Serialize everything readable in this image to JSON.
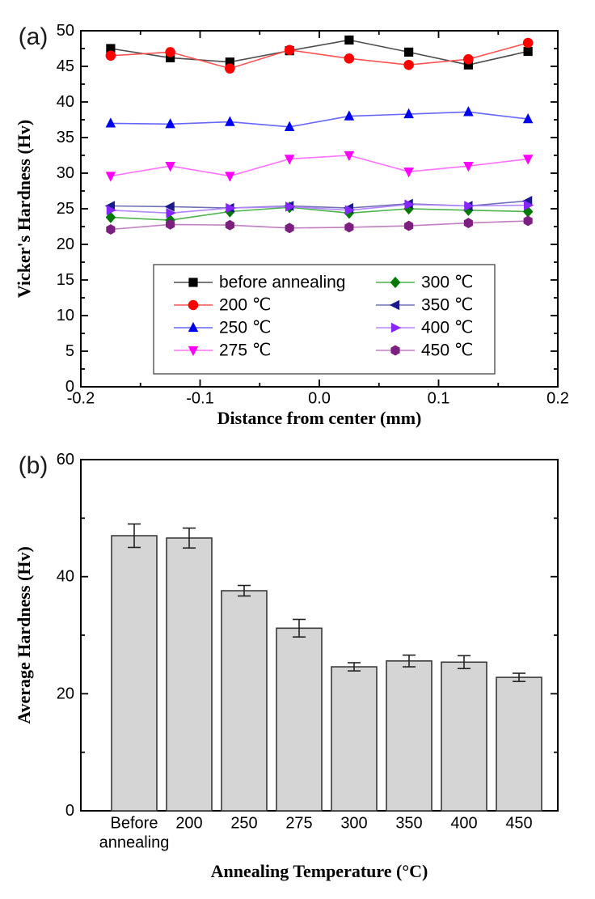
{
  "panels": {
    "a": {
      "label": "(a)"
    },
    "b": {
      "label": "(b)"
    }
  },
  "chart_data": [
    {
      "type": "line",
      "panel": "a",
      "title": "",
      "xlabel": "Distance from center (mm)",
      "ylabel": "Vicker's Hardness (Hv)",
      "xlim": [
        -0.2,
        0.2
      ],
      "ylim": [
        0,
        50
      ],
      "grid": false,
      "x_major_ticks": [
        -0.2,
        -0.1,
        0.0,
        0.1,
        0.2
      ],
      "x_tick_labels": [
        "-0.2",
        "-0.1",
        "0.0",
        "0.1",
        "0.2"
      ],
      "x_minor_ticks": [
        -0.15,
        -0.05,
        0.05,
        0.15
      ],
      "y_major_ticks": [
        0,
        5,
        10,
        15,
        20,
        25,
        30,
        35,
        40,
        45,
        50
      ],
      "y_minor_ticks": [
        2.5,
        7.5,
        12.5,
        17.5,
        22.5,
        27.5,
        32.5,
        37.5,
        42.5,
        47.5
      ],
      "legend_position": "inside-bottom-center",
      "legend_columns": 2,
      "x": [
        -0.175,
        -0.125,
        -0.075,
        -0.025,
        0.025,
        0.075,
        0.125,
        0.175
      ],
      "series": [
        {
          "name": "before annealing",
          "marker": "square",
          "color": "#000000",
          "line_color": "#4d4d4d",
          "values": [
            47.5,
            46.2,
            45.6,
            47.2,
            48.7,
            47.0,
            45.2,
            47.1
          ]
        },
        {
          "name": "200 ℃",
          "marker": "circle",
          "color": "#ff0000",
          "line_color": "#ff5252",
          "values": [
            46.5,
            47.0,
            44.7,
            47.3,
            46.1,
            45.2,
            46.0,
            48.3
          ]
        },
        {
          "name": "250 ℃",
          "marker": "triangle-up",
          "color": "#0000f0",
          "line_color": "#6666ff",
          "values": [
            37.0,
            36.9,
            37.2,
            36.5,
            38.0,
            38.3,
            38.6,
            37.6
          ]
        },
        {
          "name": "275 ℃",
          "marker": "triangle-down",
          "color": "#ff00ff",
          "line_color": "#ff70ff",
          "values": [
            29.6,
            31.0,
            29.6,
            32.0,
            32.5,
            30.2,
            31.0,
            32.0
          ]
        },
        {
          "name": "300 ℃",
          "marker": "diamond",
          "color": "#007a00",
          "line_color": "#4db34d",
          "values": [
            23.8,
            23.4,
            24.6,
            25.2,
            24.4,
            25.0,
            24.8,
            24.6
          ]
        },
        {
          "name": "350 ℃",
          "marker": "triangle-left",
          "color": "#1a1a8c",
          "line_color": "#7070b8",
          "values": [
            25.4,
            25.3,
            25.1,
            25.4,
            25.1,
            25.7,
            25.4,
            26.1
          ]
        },
        {
          "name": "400 ℃",
          "marker": "triangle-right",
          "color": "#8826ff",
          "line_color": "#b385ff",
          "values": [
            24.8,
            24.4,
            25.1,
            25.3,
            24.8,
            25.6,
            25.4,
            25.5
          ]
        },
        {
          "name": "450 ℃",
          "marker": "hexagon",
          "color": "#7d1f80",
          "line_color": "#c07fc0",
          "values": [
            22.1,
            22.8,
            22.7,
            22.3,
            22.4,
            22.6,
            23.0,
            23.3
          ]
        }
      ]
    },
    {
      "type": "bar",
      "panel": "b",
      "title": "",
      "xlabel": "Annealing Temperature (°C)",
      "ylabel": "Average Hardness (Hv)",
      "ylim": [
        0,
        60
      ],
      "grid": false,
      "y_major_ticks": [
        0,
        20,
        40,
        60
      ],
      "y_minor_ticks": [
        10,
        30,
        50
      ],
      "categories": [
        "Before\nannealing",
        "200",
        "250",
        "275",
        "300",
        "350",
        "400",
        "450"
      ],
      "values": [
        47.0,
        46.6,
        37.6,
        31.2,
        24.6,
        25.6,
        25.4,
        22.8
      ],
      "errors": [
        2.0,
        1.7,
        0.9,
        1.5,
        0.7,
        1.0,
        1.1,
        0.7
      ],
      "bar_color": "#d5d5d5",
      "bar_edge_color": "#3a3a3a",
      "error_bar_color": "#222222"
    }
  ]
}
